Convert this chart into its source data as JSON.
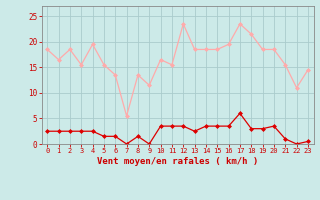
{
  "hours": [
    0,
    1,
    2,
    3,
    4,
    5,
    6,
    7,
    8,
    9,
    10,
    11,
    12,
    13,
    14,
    15,
    16,
    17,
    18,
    19,
    20,
    21,
    22,
    23
  ],
  "wind_avg": [
    2.5,
    2.5,
    2.5,
    2.5,
    2.5,
    1.5,
    1.5,
    0.0,
    1.5,
    0.0,
    3.5,
    3.5,
    3.5,
    2.5,
    3.5,
    3.5,
    3.5,
    6.0,
    3.0,
    3.0,
    3.5,
    1.0,
    0.0,
    0.5
  ],
  "wind_gust": [
    18.5,
    16.5,
    18.5,
    15.5,
    19.5,
    15.5,
    13.5,
    5.5,
    13.5,
    11.5,
    16.5,
    15.5,
    23.5,
    18.5,
    18.5,
    18.5,
    19.5,
    23.5,
    21.5,
    18.5,
    18.5,
    15.5,
    11.0,
    14.5
  ],
  "avg_color": "#dd0000",
  "gust_color": "#ffaaaa",
  "bg_color": "#cceae8",
  "grid_color": "#aacccc",
  "xlabel": "Vent moyen/en rafales ( km/h )",
  "ylim": [
    0,
    27
  ],
  "yticks": [
    0,
    5,
    10,
    15,
    20,
    25
  ],
  "tick_color": "#cc0000",
  "label_color": "#cc0000",
  "axis_color": "#888888"
}
